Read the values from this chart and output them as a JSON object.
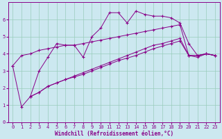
{
  "xlabel": "Windchill (Refroidissement éolien,°C)",
  "background_color": "#cce8f0",
  "grid_color": "#99ccbb",
  "line_color": "#880088",
  "line1_x": [
    0,
    1,
    2,
    3,
    4,
    5,
    6,
    7,
    8,
    9,
    10,
    11,
    12,
    13,
    14,
    15,
    16,
    17,
    18,
    19,
    20,
    21,
    22,
    23
  ],
  "line1_y": [
    3.3,
    0.9,
    1.5,
    3.0,
    3.8,
    4.6,
    4.5,
    4.5,
    3.8,
    5.0,
    5.5,
    6.4,
    6.4,
    5.8,
    6.5,
    6.3,
    6.2,
    6.2,
    6.1,
    5.8,
    4.6,
    3.9,
    4.0,
    3.9
  ],
  "line2_x": [
    0,
    1,
    2,
    3,
    4,
    5,
    6,
    7,
    8,
    9,
    10,
    11,
    12,
    13,
    14,
    15,
    16,
    17,
    18,
    19,
    20,
    21,
    22,
    23
  ],
  "line2_y": [
    3.3,
    3.9,
    4.0,
    4.2,
    4.3,
    4.4,
    4.5,
    4.5,
    4.6,
    4.7,
    4.8,
    4.9,
    5.0,
    5.1,
    5.2,
    5.3,
    5.4,
    5.5,
    5.6,
    5.7,
    3.9,
    3.9,
    4.0,
    3.9
  ],
  "line3_x": [
    2,
    3,
    4,
    5,
    6,
    7,
    8,
    9,
    10,
    11,
    12,
    13,
    14,
    15,
    16,
    17,
    18,
    19,
    20,
    21,
    22,
    23
  ],
  "line3_y": [
    1.5,
    1.75,
    2.1,
    2.3,
    2.5,
    2.7,
    2.9,
    3.1,
    3.3,
    3.5,
    3.7,
    3.9,
    4.1,
    4.3,
    4.5,
    4.6,
    4.75,
    4.9,
    3.9,
    3.9,
    4.0,
    3.9
  ],
  "line4_x": [
    2,
    3,
    4,
    5,
    6,
    7,
    8,
    9,
    10,
    11,
    12,
    13,
    14,
    15,
    16,
    17,
    18,
    19,
    20,
    21,
    22,
    23
  ],
  "line4_y": [
    1.5,
    1.75,
    2.1,
    2.3,
    2.5,
    2.65,
    2.8,
    3.0,
    3.2,
    3.4,
    3.6,
    3.75,
    3.9,
    4.1,
    4.3,
    4.45,
    4.6,
    4.75,
    3.9,
    3.8,
    4.0,
    3.9
  ],
  "ylim": [
    0,
    7
  ],
  "xlim": [
    -0.5,
    23.5
  ],
  "yticks": [
    0,
    1,
    2,
    3,
    4,
    5,
    6
  ],
  "xticks": [
    0,
    1,
    2,
    3,
    4,
    5,
    6,
    7,
    8,
    9,
    10,
    11,
    12,
    13,
    14,
    15,
    16,
    17,
    18,
    19,
    20,
    21,
    22,
    23
  ]
}
